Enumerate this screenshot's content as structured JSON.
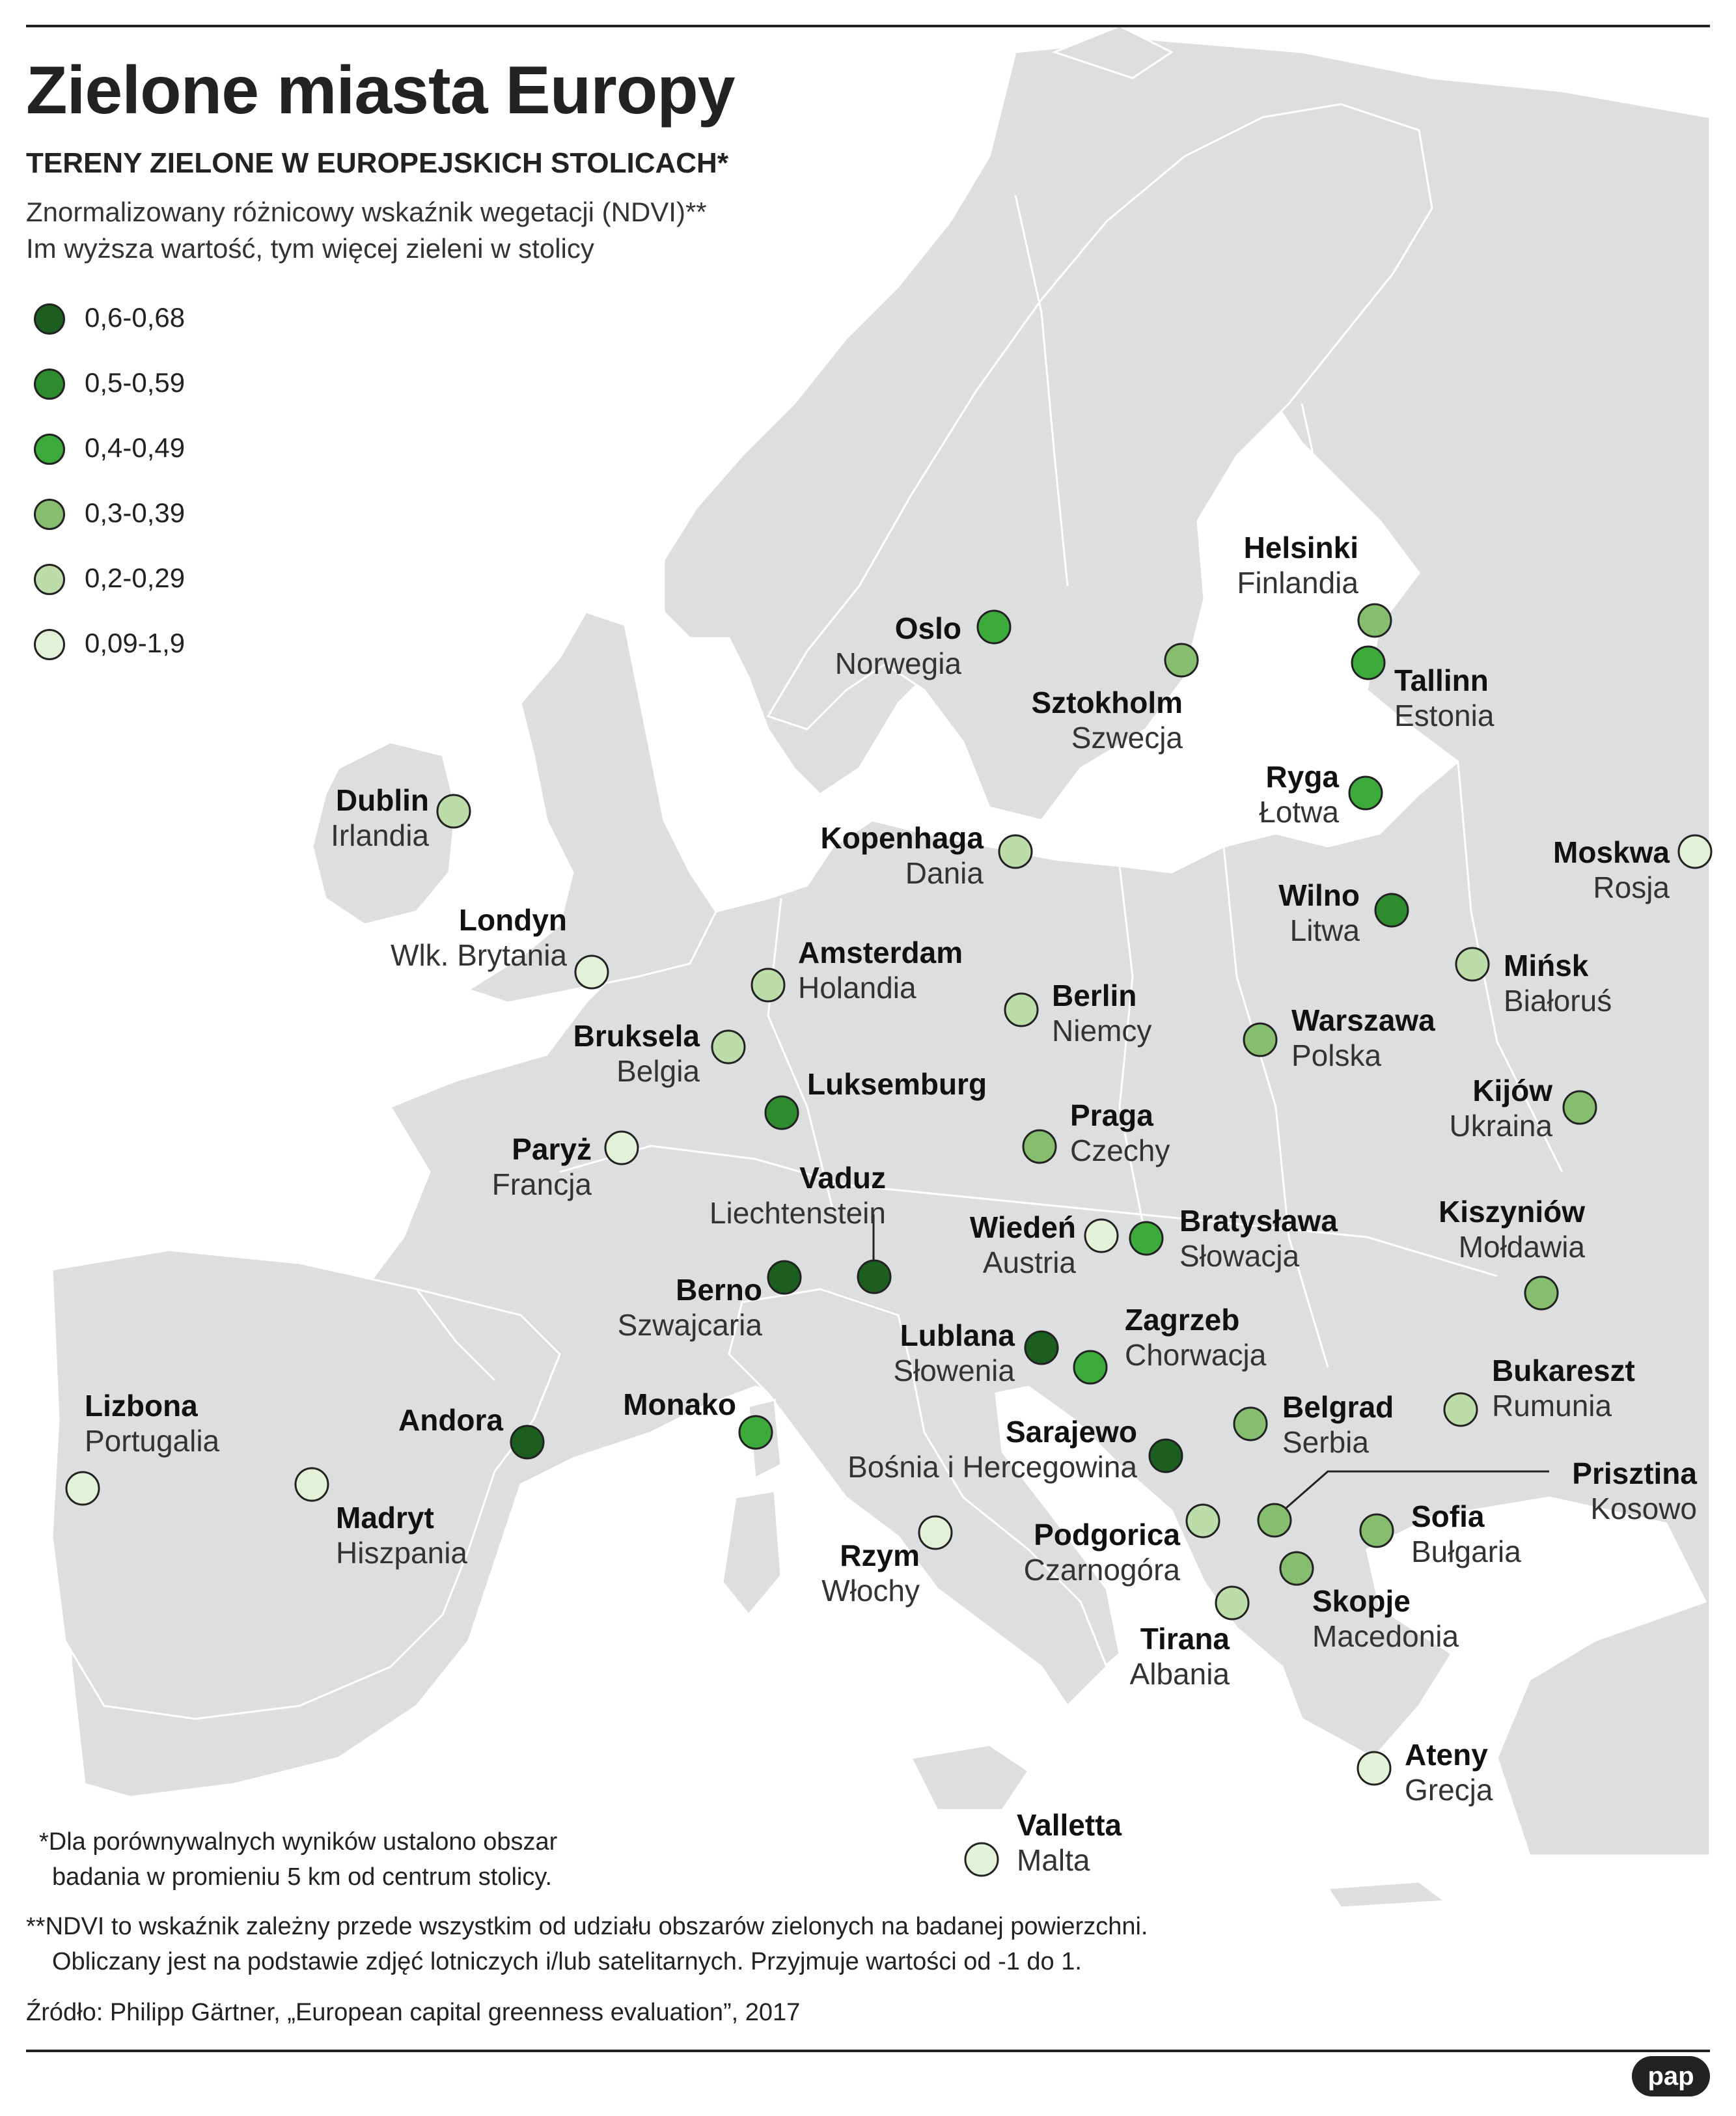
{
  "title": "Zielone miasta Europy",
  "subtitle": "TERENY ZIELONE W EUROPEJSKICH STOLICACH*",
  "description_line1": "Znormalizowany różnicowy wskaźnik wegetacji (NDVI)**",
  "description_line2": "Im wyższa wartość, tym więcej zieleni w stolicy",
  "legend": [
    {
      "label": "0,6-0,68",
      "color": "#1b5e20"
    },
    {
      "label": "0,5-0,59",
      "color": "#2e8b2e"
    },
    {
      "label": "0,4-0,49",
      "color": "#3cab3c"
    },
    {
      "label": "0,3-0,39",
      "color": "#86bd6e"
    },
    {
      "label": "0,2-0,29",
      "color": "#bcdcaa"
    },
    {
      "label": "0,09-1,9",
      "color": "#e3f1d8"
    }
  ],
  "capitals": [
    {
      "city": "Oslo",
      "country": "Norwegia",
      "class": 2
    },
    {
      "city": "Helsinki",
      "country": "Finlandia",
      "class": 3
    },
    {
      "city": "Tallinn",
      "country": "Estonia",
      "class": 2
    },
    {
      "city": "Sztokholm",
      "country": "Szwecja",
      "class": 3
    },
    {
      "city": "Ryga",
      "country": "Łotwa",
      "class": 2
    },
    {
      "city": "Dublin",
      "country": "Irlandia",
      "class": 4
    },
    {
      "city": "Kopenhaga",
      "country": "Dania",
      "class": 4
    },
    {
      "city": "Moskwa",
      "country": "Rosja",
      "class": 5
    },
    {
      "city": "Wilno",
      "country": "Litwa",
      "class": 1
    },
    {
      "city": "Londyn",
      "country": "Wlk. Brytania",
      "class": 5
    },
    {
      "city": "Amsterdam",
      "country": "Holandia",
      "class": 4
    },
    {
      "city": "Mińsk",
      "country": "Białoruś",
      "class": 4
    },
    {
      "city": "Berlin",
      "country": "Niemcy",
      "class": 4
    },
    {
      "city": "Warszawa",
      "country": "Polska",
      "class": 3
    },
    {
      "city": "Bruksela",
      "country": "Belgia",
      "class": 4
    },
    {
      "city": "Luksemburg",
      "country": "",
      "class": 1
    },
    {
      "city": "Kijów",
      "country": "Ukraina",
      "class": 3
    },
    {
      "city": "Praga",
      "country": "Czechy",
      "class": 3
    },
    {
      "city": "Paryż",
      "country": "Francja",
      "class": 5
    },
    {
      "city": "Vaduz",
      "country": "Liechtenstein",
      "class": 0
    },
    {
      "city": "Wiedeń",
      "country": "Austria",
      "class": 5
    },
    {
      "city": "Bratysława",
      "country": "Słowacja",
      "class": 2
    },
    {
      "city": "Kiszyniów",
      "country": "Mołdawia",
      "class": 3
    },
    {
      "city": "Berno",
      "country": "Szwajcaria",
      "class": 0
    },
    {
      "city": "Lublana",
      "country": "Słowenia",
      "class": 0
    },
    {
      "city": "Zagrzeb",
      "country": "Chorwacja",
      "class": 2
    },
    {
      "city": "Bukareszt",
      "country": "Rumunia",
      "class": 4
    },
    {
      "city": "Lizbona",
      "country": "Portugalia",
      "class": 5
    },
    {
      "city": "Andora",
      "country": "",
      "class": 0
    },
    {
      "city": "Monako",
      "country": "",
      "class": 2
    },
    {
      "city": "Belgrad",
      "country": "Serbia",
      "class": 3
    },
    {
      "city": "Sarajewo",
      "country": "Bośnia i Hercegowina",
      "class": 0
    },
    {
      "city": "Prisztina",
      "country": "Kosowo",
      "class": 3
    },
    {
      "city": "Madryt",
      "country": "Hiszpania",
      "class": 5
    },
    {
      "city": "Rzym",
      "country": "Włochy",
      "class": 5
    },
    {
      "city": "Podgorica",
      "country": "Czarnogóra",
      "class": 4
    },
    {
      "city": "Sofia",
      "country": "Bułgaria",
      "class": 3
    },
    {
      "city": "Skopje",
      "country": "Macedonia",
      "class": 3
    },
    {
      "city": "Tirana",
      "country": "Albania",
      "class": 4
    },
    {
      "city": "Ateny",
      "country": "Grecja",
      "class": 5
    },
    {
      "city": "Valletta",
      "country": "Malta",
      "class": 5
    }
  ],
  "footnote1_line1": "*Dla porównywalnych wyników ustalono obszar",
  "footnote1_line2": "badania w promieniu 5 km od centrum stolicy.",
  "footnote2_line1": "**NDVI to wskaźnik zależny przede wszystkim od udziału obszarów zielonych na badanej powierzchni.",
  "footnote2_line2": "Obliczany jest na podstawie zdjęć lotniczych i/lub satelitarnych. Przyjmuje wartości od -1 do 1.",
  "source": "Źródło: Philipp Gärtner, „European capital greenness evaluation”, 2017",
  "logo": "pap",
  "colors": {
    "land": "#dcdee0",
    "border": "#ffffff",
    "text": "#222222"
  }
}
